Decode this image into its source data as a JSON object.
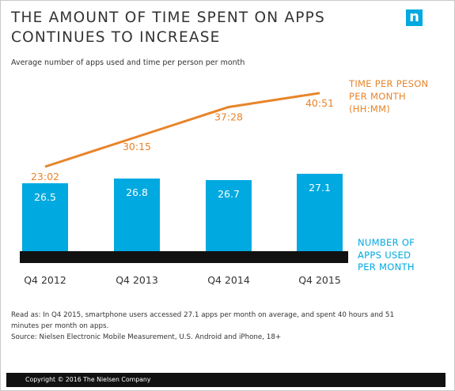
{
  "header": {
    "title": "THE AMOUNT OF TIME SPENT ON APPS CONTINUES TO INCREASE",
    "subtitle": "Average number of apps used and time per person per month",
    "logo_letter": "n"
  },
  "legend": {
    "line_label": [
      "TIME PER PESON",
      "PER MONTH",
      "(HH:MM)"
    ],
    "bar_label": [
      "NUMBER OF",
      "APPS USED",
      "PER MONTH"
    ]
  },
  "colors": {
    "bar": "#00a9e0",
    "line": "#e8842a",
    "baseline": "#111111",
    "text_dark": "#333333"
  },
  "chart_data": {
    "type": "bar",
    "categories": [
      "Q4 2012",
      "Q4 2013",
      "Q4 2014",
      "Q4 2015"
    ],
    "series": [
      {
        "name": "NUMBER OF APPS USED PER MONTH",
        "type": "bar",
        "values": [
          26.5,
          26.8,
          26.7,
          27.1
        ],
        "labels": [
          "26.5",
          "26.8",
          "26.7",
          "27.1"
        ]
      },
      {
        "name": "TIME PER PESON PER MONTH (HH:MM)",
        "type": "line",
        "values": [
          23.03,
          30.25,
          37.47,
          40.85
        ],
        "labels": [
          "23:02",
          "30:15",
          "37:28",
          "40:51"
        ]
      }
    ],
    "grid": false
  },
  "notes": {
    "read_as": "Read as: In Q4 2015, smartphone users accessed 27.1 apps per month on average, and spent 40 hours and 51 minutes per month on apps.",
    "source": "Source: Nielsen Electronic Mobile Measurement, U.S. Android and iPhone, 18+"
  },
  "footer": {
    "copyright": "Copyright © 2016 The Nielsen Company"
  }
}
